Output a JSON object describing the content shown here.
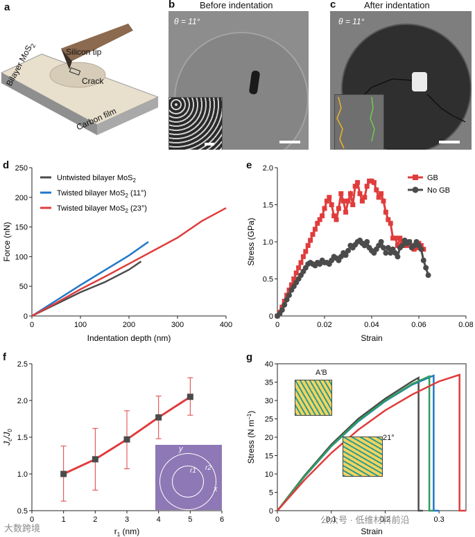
{
  "panels": {
    "a": {
      "label": "a",
      "silicon_tip": "Silicon tip",
      "crack": "Crack",
      "bilayer": "Bilayer MoS",
      "bilayer_sub": "2",
      "carbon_film": "Carbon film"
    },
    "b": {
      "label": "b",
      "title": "Before indentation",
      "theta": "θ = 11°"
    },
    "c": {
      "label": "c",
      "title": "After indentation",
      "theta": "θ = 11°"
    },
    "d": {
      "label": "d"
    },
    "e": {
      "label": "e"
    },
    "f": {
      "label": "f",
      "inset_labels": {
        "y": "y",
        "x": "x",
        "r1": "r1",
        "r2": "r2"
      }
    },
    "g": {
      "label": "g",
      "inset_top": "A′B",
      "inset_angle": "21°"
    }
  },
  "watermark": {
    "left": "大数跨境",
    "right": "公众号 · 低维材料前沿"
  },
  "colors": {
    "gray": "#4b4b4b",
    "blue": "#1f77c9",
    "red": "#e03c3c",
    "green": "#2e9e5b",
    "grad_light": "#d9cfbe"
  },
  "chart_data": [
    {
      "id": "d",
      "type": "line",
      "xlabel": "Indentation depth (nm)",
      "ylabel": "Force (nN)",
      "xlim": [
        0,
        400
      ],
      "ylim": [
        0,
        250
      ],
      "xticks": [
        "0",
        "100",
        "200",
        "300",
        "400"
      ],
      "yticks": [
        "0",
        "50",
        "100",
        "150",
        "200",
        "250"
      ],
      "legend": "top-left",
      "series": [
        {
          "name": "Untwisted bilayer MoS",
          "sub": "2",
          "suffix": "",
          "color": "#4b4b4b",
          "x": [
            0,
            50,
            100,
            150,
            200,
            225
          ],
          "y": [
            0,
            20,
            40,
            57,
            78,
            92
          ]
        },
        {
          "name": "Twisted bilayer MoS",
          "sub": "2",
          "suffix": " (11°)",
          "color": "#1f77c9",
          "x": [
            0,
            50,
            100,
            150,
            200,
            240
          ],
          "y": [
            0,
            26,
            52,
            77,
            102,
            125
          ]
        },
        {
          "name": "Twisted bilayer MoS",
          "sub": "2",
          "suffix": " (23°)",
          "color": "#e03c3c",
          "x": [
            0,
            50,
            100,
            150,
            200,
            250,
            300,
            350,
            400
          ],
          "y": [
            0,
            22,
            45,
            66,
            88,
            110,
            132,
            160,
            182
          ]
        }
      ]
    },
    {
      "id": "e",
      "type": "line",
      "xlabel": "Strain",
      "ylabel": "Stress (GPa)",
      "xlim": [
        0,
        0.08
      ],
      "ylim": [
        0,
        2.0
      ],
      "xticks": [
        "0",
        "0.02",
        "0.04",
        "0.06",
        "0.08"
      ],
      "yticks": [
        "0",
        "0.5",
        "1.0",
        "1.5",
        "2.0"
      ],
      "legend": "top-right",
      "series": [
        {
          "name": "GB",
          "color": "#e03c3c",
          "marker": "square",
          "x": [
            0,
            0.001,
            0.002,
            0.003,
            0.004,
            0.005,
            0.006,
            0.007,
            0.008,
            0.009,
            0.01,
            0.011,
            0.012,
            0.013,
            0.014,
            0.015,
            0.016,
            0.017,
            0.018,
            0.019,
            0.02,
            0.021,
            0.022,
            0.023,
            0.024,
            0.025,
            0.026,
            0.027,
            0.028,
            0.029,
            0.03,
            0.031,
            0.032,
            0.033,
            0.034,
            0.035,
            0.036,
            0.037,
            0.038,
            0.039,
            0.04,
            0.041,
            0.042,
            0.043,
            0.044,
            0.045,
            0.046,
            0.047,
            0.048,
            0.049,
            0.05,
            0.051,
            0.052,
            0.053,
            0.054,
            0.055,
            0.056,
            0.057,
            0.058,
            0.059,
            0.06,
            0.061,
            0.062
          ],
          "y": [
            0,
            0.05,
            0.12,
            0.2,
            0.28,
            0.35,
            0.42,
            0.5,
            0.58,
            0.65,
            0.72,
            0.8,
            0.87,
            0.95,
            1.02,
            1.1,
            1.17,
            1.25,
            1.3,
            1.35,
            1.45,
            1.55,
            1.6,
            1.5,
            1.35,
            1.3,
            1.45,
            1.65,
            1.55,
            1.4,
            1.55,
            1.65,
            1.5,
            1.75,
            1.8,
            1.65,
            1.55,
            1.6,
            1.75,
            1.82,
            1.82,
            1.8,
            1.7,
            1.6,
            1.65,
            1.55,
            1.4,
            1.3,
            1.25,
            1.05,
            1.05,
            0.95,
            1.05,
            1.0,
            0.95,
            0.95,
            1.0,
            0.95,
            0.9,
            0.92,
            0.98,
            0.95,
            0.9
          ]
        },
        {
          "name": "No GB",
          "color": "#4b4b4b",
          "marker": "circle",
          "x": [
            0,
            0.001,
            0.002,
            0.003,
            0.004,
            0.005,
            0.006,
            0.007,
            0.008,
            0.009,
            0.01,
            0.011,
            0.012,
            0.013,
            0.014,
            0.015,
            0.016,
            0.017,
            0.018,
            0.019,
            0.02,
            0.021,
            0.022,
            0.023,
            0.024,
            0.025,
            0.026,
            0.027,
            0.028,
            0.029,
            0.03,
            0.031,
            0.032,
            0.033,
            0.034,
            0.035,
            0.036,
            0.037,
            0.038,
            0.039,
            0.04,
            0.041,
            0.042,
            0.043,
            0.044,
            0.045,
            0.046,
            0.047,
            0.048,
            0.049,
            0.05,
            0.051,
            0.052,
            0.053,
            0.054,
            0.055,
            0.056,
            0.057,
            0.058,
            0.059,
            0.06,
            0.061,
            0.062,
            0.063,
            0.064
          ],
          "y": [
            0,
            0.03,
            0.08,
            0.15,
            0.22,
            0.28,
            0.35,
            0.4,
            0.45,
            0.5,
            0.55,
            0.6,
            0.65,
            0.7,
            0.72,
            0.7,
            0.68,
            0.72,
            0.7,
            0.75,
            0.72,
            0.72,
            0.7,
            0.75,
            0.8,
            0.78,
            0.75,
            0.8,
            0.85,
            0.82,
            0.88,
            0.95,
            0.92,
            0.96,
            1.0,
            1.02,
            0.98,
            0.95,
            1.0,
            0.92,
            0.88,
            0.85,
            0.9,
            0.95,
            1.0,
            0.92,
            0.85,
            0.92,
            0.85,
            0.9,
            0.85,
            0.8,
            0.92,
            0.95,
            1.02,
            0.98,
            1.0,
            0.92,
            0.95,
            1.0,
            0.95,
            0.9,
            0.75,
            0.65,
            0.55
          ]
        }
      ]
    },
    {
      "id": "f",
      "type": "line",
      "xlabel": "r",
      "xlabel_sub": "1",
      "xlabel_unit": " (nm)",
      "ylabel": "J",
      "ylabel_sub1": "c",
      "ylabel_mid": "/J",
      "ylabel_sub2": "0",
      "xlim": [
        0,
        6
      ],
      "ylim": [
        0.5,
        2.5
      ],
      "xticks": [
        "0",
        "1",
        "2",
        "3",
        "4",
        "5",
        "6"
      ],
      "yticks": [
        "0.5",
        "1.0",
        "1.5",
        "2.0",
        "2.5"
      ],
      "series": [
        {
          "color": "#e03c3c",
          "marker_color": "#4b4b4b",
          "x": [
            1,
            2,
            3,
            4,
            5
          ],
          "y": [
            1.0,
            1.2,
            1.47,
            1.77,
            2.05
          ],
          "err_low": [
            0.63,
            0.78,
            1.07,
            1.48,
            1.8
          ],
          "err_high": [
            1.38,
            1.62,
            1.86,
            2.06,
            2.31
          ]
        }
      ]
    },
    {
      "id": "g",
      "type": "line",
      "xlabel": "Strain",
      "ylabel": "Stress (N m",
      "ylabel_sup": "−1",
      "ylabel_end": ")",
      "xlim": [
        0,
        0.35
      ],
      "ylim": [
        0,
        40
      ],
      "xticks": [
        "0",
        "0.1",
        "0.2",
        "0.3"
      ],
      "yticks": [
        "0",
        "5",
        "10",
        "15",
        "20",
        "25",
        "30",
        "35",
        "40"
      ],
      "series": [
        {
          "color": "#4b4b4b",
          "x": [
            0,
            0.05,
            0.1,
            0.15,
            0.2,
            0.25,
            0.262,
            0.262,
            0.27
          ],
          "y": [
            0,
            9.5,
            18,
            25,
            30.5,
            35.2,
            36.2,
            0,
            0
          ]
        },
        {
          "color": "#1f77c9",
          "x": [
            0,
            0.05,
            0.1,
            0.15,
            0.2,
            0.25,
            0.29,
            0.29,
            0.3
          ],
          "y": [
            0,
            9.2,
            17.5,
            24.3,
            29.8,
            34.3,
            36.8,
            0,
            0
          ]
        },
        {
          "color": "#2e9e5b",
          "x": [
            0,
            0.05,
            0.1,
            0.15,
            0.2,
            0.25,
            0.282,
            0.282,
            0.29
          ],
          "y": [
            0,
            9.3,
            17.6,
            24.5,
            30,
            34.5,
            36.6,
            0,
            0
          ]
        },
        {
          "color": "#e03c3c",
          "x": [
            0,
            0.05,
            0.1,
            0.15,
            0.2,
            0.25,
            0.3,
            0.338,
            0.338,
            0.35
          ],
          "y": [
            0,
            8.3,
            15.7,
            22,
            27.3,
            31.6,
            35.2,
            37,
            0,
            0
          ]
        }
      ]
    }
  ]
}
